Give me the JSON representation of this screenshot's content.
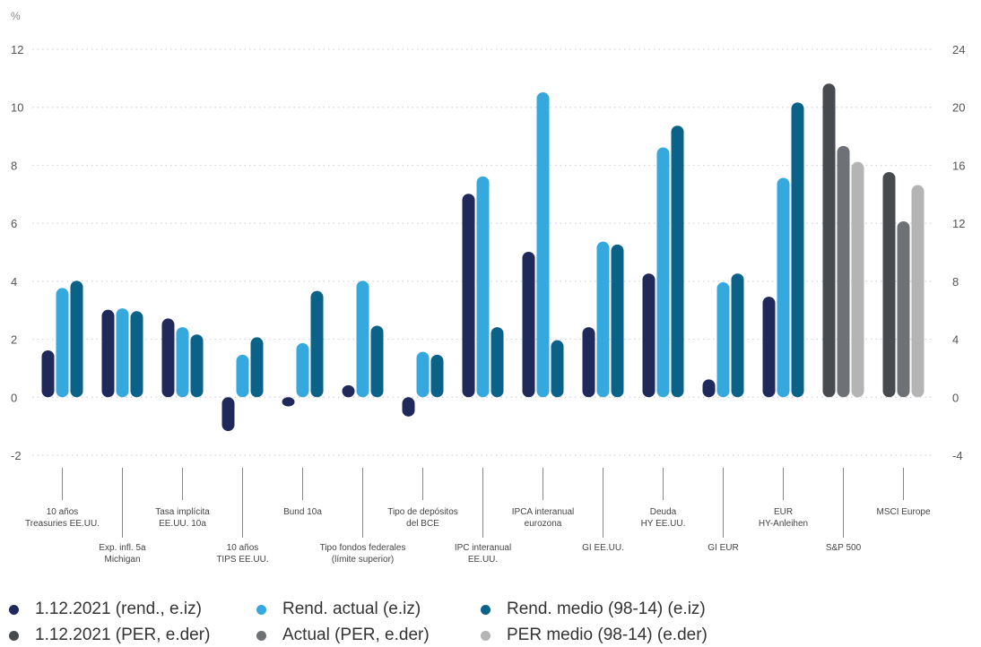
{
  "chart_data": {
    "type": "bar",
    "left_axis": {
      "unit": "%",
      "ticks": [
        "12",
        "10",
        "8",
        "6",
        "4",
        "2",
        "0",
        "-2"
      ],
      "range": [
        -2,
        12
      ]
    },
    "right_axis": {
      "ticks": [
        "24",
        "20",
        "16",
        "12",
        "8",
        "4",
        "0",
        "-4"
      ],
      "range": [
        -4,
        24
      ]
    },
    "grid": true,
    "legend_position": "bottom",
    "categories": [
      [
        "10 años",
        "Treasuries EE.UU."
      ],
      [
        "Exp. infl. 5a",
        "Michigan"
      ],
      [
        "Tasa implícita",
        "EE.UU. 10a"
      ],
      [
        "10 años",
        "TIPS EE.UU."
      ],
      [
        "Bund 10a"
      ],
      [
        "Tipo fondos federales",
        "(límite superior)"
      ],
      [
        "Tipo de depósitos",
        "del BCE"
      ],
      [
        "IPC interanual",
        "EE.UU."
      ],
      [
        "IPCA interanual",
        "eurozona"
      ],
      [
        "GI EE.UU."
      ],
      [
        "Deuda",
        "HY EE.UU."
      ],
      [
        "GI EUR"
      ],
      [
        "EUR",
        "HY-Anleihen"
      ],
      [
        "S&P 500"
      ],
      [
        "MSCI Europe"
      ]
    ],
    "series": [
      {
        "name": "1.12.2021 (rend., e.iz)",
        "axis": "left",
        "color": "#1f2a5a",
        "values": [
          1.4,
          2.8,
          2.5,
          -0.95,
          -0.1,
          0.2,
          -0.45,
          6.8,
          4.8,
          2.2,
          4.05,
          0.4,
          3.25,
          null,
          null
        ]
      },
      {
        "name": "Rend. actual (e.iz)",
        "axis": "left",
        "color": "#35a8de",
        "values": [
          3.55,
          2.85,
          2.2,
          1.25,
          1.65,
          3.8,
          1.35,
          7.4,
          10.3,
          5.15,
          8.4,
          3.75,
          7.35,
          null,
          null
        ]
      },
      {
        "name": "Rend. medio (98-14) (e.iz)",
        "axis": "left",
        "color": "#0a6288",
        "values": [
          3.8,
          2.75,
          1.95,
          1.85,
          3.45,
          2.25,
          1.25,
          2.2,
          1.75,
          5.05,
          9.15,
          4.05,
          9.95,
          null,
          null
        ]
      },
      {
        "name": "1.12.2021 (PER, e.der)",
        "axis": "right",
        "color": "#474b50",
        "values": [
          null,
          null,
          null,
          null,
          null,
          null,
          null,
          null,
          null,
          null,
          null,
          null,
          null,
          21.2,
          15.1
        ]
      },
      {
        "name": "Actual (PER, e.der)",
        "axis": "right",
        "color": "#6e7175",
        "values": [
          null,
          null,
          null,
          null,
          null,
          null,
          null,
          null,
          null,
          null,
          null,
          null,
          null,
          16.9,
          11.7
        ]
      },
      {
        "name": "PER medio (98-14) (e.der)",
        "axis": "right",
        "color": "#b4b4b4",
        "values": [
          null,
          null,
          null,
          null,
          null,
          null,
          null,
          null,
          null,
          null,
          null,
          null,
          null,
          15.8,
          14.2
        ]
      }
    ]
  }
}
